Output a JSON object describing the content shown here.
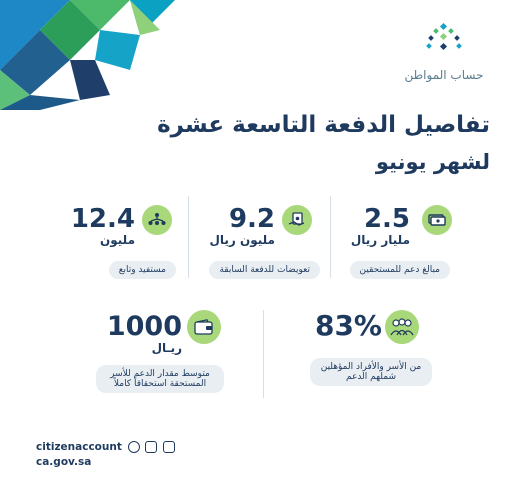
{
  "logo": {
    "text": "حساب المواطن"
  },
  "heading": {
    "line1": "تفاصيل الدفعة التاسعة عشرة",
    "line2": "لشهر يونيو"
  },
  "stats": {
    "support": {
      "value": "2.5",
      "unit": "مليار ريال",
      "label": "مبالغ دعم للمستحقين"
    },
    "compensation": {
      "value": "9.2",
      "unit": "مليون ريال",
      "label": "تعويضات للدفعة السابقة"
    },
    "beneficiaries": {
      "value": "12.4",
      "unit": "مليون",
      "label": "مستفيد وتابع"
    },
    "families": {
      "value": "83%",
      "label_line1": "من الأسر والأفراد المؤهلين",
      "label_line2": "شملهم الدعم"
    },
    "average": {
      "value": "1000",
      "unit": "ريـال",
      "label_line1": "متوسط مقدار الدعم للأسر",
      "label_line2": "المستحقة استحقاقاً كاملاً"
    }
  },
  "footer": {
    "handle": "citizenaccount",
    "domain": "ca.gov.sa"
  },
  "colors": {
    "navy": "#1f3a5f",
    "green": "#a8d87a",
    "teal": "#1aa3c9"
  }
}
